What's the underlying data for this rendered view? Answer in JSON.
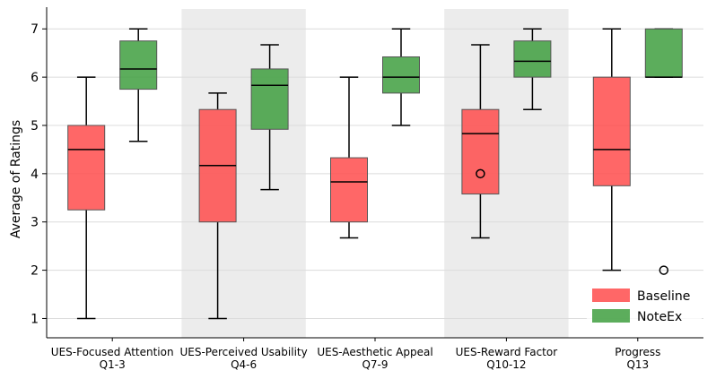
{
  "chart_data": {
    "type": "box",
    "ylabel": "Average of Ratings",
    "ylim": [
      0.6,
      7.45
    ],
    "yticks": [
      1,
      2,
      3,
      4,
      5,
      6,
      7
    ],
    "grid": "horizontal",
    "shaded_groups": [
      1,
      3
    ],
    "categories": [
      {
        "line1": "UES-Focused Attention",
        "line2": "Q1-3"
      },
      {
        "line1": "UES-Perceived Usability",
        "line2": "Q4-6"
      },
      {
        "line1": "UES-Aesthetic Appeal",
        "line2": "Q7-9"
      },
      {
        "line1": "UES-Reward Factor",
        "line2": "Q10-12"
      },
      {
        "line1": "Progress",
        "line2": "Q13"
      }
    ],
    "series": [
      {
        "name": "Baseline",
        "color": "#ff4c4c",
        "boxes": [
          {
            "whisker_low": 1.0,
            "q1": 3.25,
            "median": 4.5,
            "q3": 5.0,
            "whisker_high": 6.0,
            "outliers": []
          },
          {
            "whisker_low": 1.0,
            "q1": 3.0,
            "median": 4.17,
            "q3": 5.33,
            "whisker_high": 5.67,
            "outliers": []
          },
          {
            "whisker_low": 2.67,
            "q1": 3.0,
            "median": 3.83,
            "q3": 4.33,
            "whisker_high": 6.0,
            "outliers": []
          },
          {
            "whisker_low": 2.67,
            "q1": 3.58,
            "median": 4.83,
            "q3": 5.33,
            "whisker_high": 6.67,
            "outliers": [
              4.0
            ]
          },
          {
            "whisker_low": 2.0,
            "q1": 3.75,
            "median": 4.5,
            "q3": 6.0,
            "whisker_high": 7.0,
            "outliers": []
          }
        ]
      },
      {
        "name": "NoteEx",
        "color": "#3f9f3f",
        "boxes": [
          {
            "whisker_low": 4.67,
            "q1": 5.75,
            "median": 6.17,
            "q3": 6.75,
            "whisker_high": 7.0,
            "outliers": []
          },
          {
            "whisker_low": 3.67,
            "q1": 4.92,
            "median": 5.83,
            "q3": 6.17,
            "whisker_high": 6.67,
            "outliers": []
          },
          {
            "whisker_low": 5.0,
            "q1": 5.67,
            "median": 6.0,
            "q3": 6.42,
            "whisker_high": 7.0,
            "outliers": []
          },
          {
            "whisker_low": 5.33,
            "q1": 6.0,
            "median": 6.33,
            "q3": 6.75,
            "whisker_high": 7.0,
            "outliers": []
          },
          {
            "whisker_low": 6.0,
            "q1": 6.0,
            "median": 6.0,
            "q3": 7.0,
            "whisker_high": 7.0,
            "outliers": [
              2.0
            ]
          }
        ]
      }
    ],
    "legend_position": "lower-right"
  }
}
